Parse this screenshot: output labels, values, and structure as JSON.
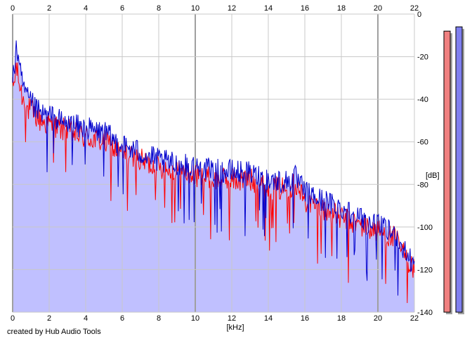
{
  "chart_data": {
    "type": "line",
    "title": "",
    "xlabel": "[kHz]",
    "ylabel": "[dB]",
    "xlim": [
      0,
      22
    ],
    "ylim": [
      -140,
      0
    ],
    "x_ticks": [
      0,
      2,
      4,
      6,
      8,
      10,
      12,
      14,
      16,
      18,
      20,
      22
    ],
    "y_ticks": [
      0,
      -20,
      -40,
      -60,
      -80,
      -100,
      -120,
      -140
    ],
    "x_tick_labels": [
      "0",
      "2",
      "4",
      "6",
      "8",
      "10",
      "12",
      "14",
      "16",
      "18",
      "20",
      "22"
    ],
    "y_tick_labels": [
      "0",
      "-20",
      "-40",
      "-60",
      "-80",
      "-100",
      "-120",
      "-140"
    ],
    "grid": true,
    "legend": "none",
    "colors": {
      "left_channel": "#ff0000",
      "right_channel": "#0000cc",
      "fill": "#c0c0ff",
      "grid": "#c8c8c8",
      "grid_major": "#a0a0a0",
      "meter_left": "#f08080",
      "meter_right": "#8080f0"
    },
    "series": [
      {
        "x": [
          0,
          0.1,
          0.2,
          0.3,
          0.5,
          0.8,
          1,
          1.5,
          2,
          3,
          4,
          5,
          6,
          7,
          8,
          9,
          10,
          11,
          12,
          13,
          14,
          15,
          15.5,
          16,
          17,
          18,
          19,
          20,
          21,
          21.5,
          22
        ],
        "values": [
          -35,
          -32,
          -24,
          -30,
          -38,
          -45,
          -45,
          -50,
          -52,
          -55,
          -58,
          -60,
          -66,
          -69,
          -72,
          -74,
          -76,
          -78,
          -78,
          -78,
          -82,
          -82,
          -80,
          -88,
          -92,
          -96,
          -99,
          -102,
          -106,
          -114,
          -120
        ]
      },
      {
        "x": [
          0,
          0.1,
          0.2,
          0.3,
          0.5,
          0.8,
          1,
          1.5,
          2,
          3,
          4,
          5,
          6,
          7,
          8,
          9,
          10,
          11,
          12,
          13,
          14,
          15,
          15.5,
          16,
          17,
          18,
          19,
          20,
          21,
          21.5,
          22
        ],
        "values": [
          -32,
          -26,
          -12,
          -22,
          -32,
          -40,
          -42,
          -47,
          -48,
          -52,
          -54,
          -56,
          -62,
          -65,
          -69,
          -71,
          -72,
          -74,
          -74,
          -75,
          -78,
          -79,
          -77,
          -84,
          -88,
          -91,
          -96,
          -100,
          -104,
          -112,
          -118
        ]
      }
    ],
    "meters": [
      {
        "value": -8
      },
      {
        "value": -6
      }
    ]
  },
  "credit": "created by Hub Audio Tools"
}
